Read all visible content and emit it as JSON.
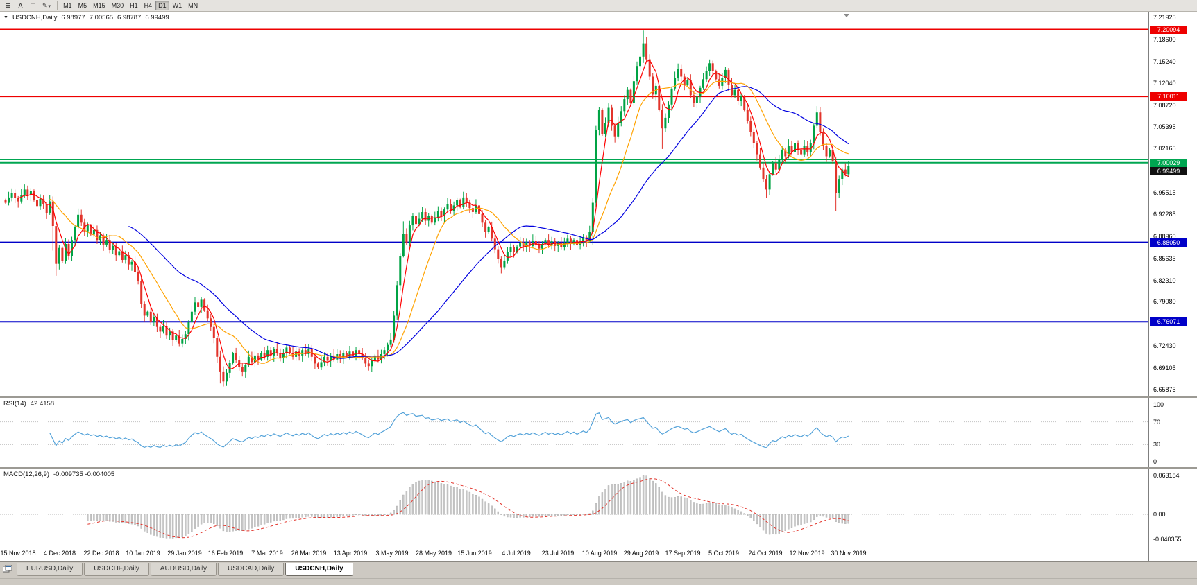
{
  "toolbar": {
    "icons": [
      {
        "name": "chart-list-icon",
        "glyph": "≣"
      },
      {
        "name": "cursor-tool-icon",
        "glyph": "A"
      },
      {
        "name": "text-tool-icon",
        "glyph": "T"
      },
      {
        "name": "draw-tool-icon",
        "glyph": "✎",
        "caret": "▾"
      }
    ],
    "timeframes": [
      "M1",
      "M5",
      "M15",
      "M30",
      "H1",
      "H4",
      "D1",
      "W1",
      "MN"
    ],
    "active_timeframe": "D1"
  },
  "chart": {
    "header": {
      "dropdown_glyph": "▼",
      "symbol": "USDCNH,Daily",
      "open": "6.98977",
      "high": "7.00565",
      "low": "6.98787",
      "close": "6.99499"
    },
    "price_scale_labels": [
      "7.21925",
      "7.18600",
      "7.15240",
      "7.12040",
      "7.08720",
      "7.05395",
      "7.02165",
      "6.98840",
      "6.95515",
      "6.92285",
      "6.88960",
      "6.85635",
      "6.82310",
      "6.79080",
      "6.75760",
      "6.72430",
      "6.69105",
      "6.65875"
    ],
    "current_price_badge": {
      "text": "6.99499",
      "color": "#111111",
      "price": 6.99499,
      "dy": 7
    }
  },
  "rsi": {
    "label": "RSI(14)",
    "value": "42.4158",
    "scale": [
      {
        "text": "100",
        "value": 100
      },
      {
        "text": "70",
        "value": 70
      },
      {
        "text": "30",
        "value": 30
      },
      {
        "text": "0",
        "value": 0
      }
    ],
    "levels": [
      70,
      30
    ]
  },
  "macd": {
    "label": "MACD(12,26,9)",
    "values": "-0.009735 -0.004005",
    "scale": [
      {
        "text": "0.063184",
        "value": 0.063184
      },
      {
        "text": "0.00",
        "value": 0
      },
      {
        "text": "-0.040355",
        "value": -0.040355
      }
    ]
  },
  "tabs": [
    {
      "label": "EURUSD,Daily",
      "active": false
    },
    {
      "label": "USDCHF,Daily",
      "active": false
    },
    {
      "label": "AUDUSD,Daily",
      "active": false
    },
    {
      "label": "USDCAD,Daily",
      "active": false
    },
    {
      "label": "USDCNH,Daily",
      "active": true
    }
  ],
  "chart_data": {
    "type": "candlestick",
    "symbol": "USDCNH",
    "timeframe": "Daily",
    "title": "USDCNH,Daily",
    "ylim": [
      6.652,
      7.226
    ],
    "x_labels": [
      "15 Nov 2018",
      "4 Dec 2018",
      "22 Dec 2018",
      "10 Jan 2019",
      "29 Jan 2019",
      "16 Feb 2019",
      "7 Mar 2019",
      "26 Mar 2019",
      "13 Apr 2019",
      "3 May 2019",
      "28 May 2019",
      "15 Jun 2019",
      "4 Jul 2019",
      "23 Jul 2019",
      "10 Aug 2019",
      "29 Aug 2019",
      "17 Sep 2019",
      "5 Oct 2019",
      "24 Oct 2019",
      "12 Nov 2019",
      "30 Nov 2019"
    ],
    "closes": [
      6.94,
      6.948,
      6.955,
      6.947,
      6.942,
      6.952,
      6.96,
      6.951,
      6.958,
      6.944,
      6.935,
      6.946,
      6.938,
      6.925,
      6.942,
      6.905,
      6.848,
      6.872,
      6.852,
      6.878,
      6.86,
      6.884,
      6.904,
      6.922,
      6.91,
      6.897,
      6.906,
      6.892,
      6.899,
      6.884,
      6.891,
      6.877,
      6.884,
      6.869,
      6.875,
      6.861,
      6.867,
      6.854,
      6.861,
      6.847,
      6.851,
      6.836,
      6.822,
      6.788,
      6.77,
      6.776,
      6.76,
      6.768,
      6.753,
      6.746,
      6.754,
      6.74,
      6.746,
      6.733,
      6.74,
      6.728,
      6.735,
      6.742,
      6.76,
      6.776,
      6.79,
      6.783,
      6.794,
      6.778,
      6.766,
      6.753,
      6.736,
      6.708,
      6.686,
      6.671,
      6.684,
      6.699,
      6.713,
      6.703,
      6.693,
      6.686,
      6.696,
      6.708,
      6.7,
      6.71,
      6.704,
      6.714,
      6.708,
      6.718,
      6.71,
      6.72,
      6.713,
      6.706,
      6.714,
      6.722,
      6.714,
      6.708,
      6.716,
      6.71,
      6.718,
      6.712,
      6.72,
      6.708,
      6.698,
      6.692,
      6.7,
      6.708,
      6.702,
      6.71,
      6.704,
      6.712,
      6.706,
      6.714,
      6.708,
      6.716,
      6.71,
      6.718,
      6.712,
      6.706,
      6.698,
      6.694,
      6.702,
      6.71,
      6.704,
      6.712,
      6.718,
      6.726,
      6.734,
      6.77,
      6.816,
      6.86,
      6.893,
      6.88,
      6.906,
      6.92,
      6.908,
      6.916,
      6.926,
      6.913,
      6.92,
      6.91,
      6.918,
      6.928,
      6.92,
      6.93,
      6.938,
      6.928,
      6.936,
      6.944,
      6.934,
      6.948,
      6.94,
      6.932,
      6.926,
      6.936,
      6.923,
      6.91,
      6.896,
      6.903,
      6.886,
      6.87,
      6.856,
      6.843,
      6.853,
      6.866,
      6.873,
      6.866,
      6.874,
      6.88,
      6.873,
      6.881,
      6.875,
      6.883,
      6.877,
      6.871,
      6.878,
      6.884,
      6.876,
      6.882,
      6.875,
      6.879,
      6.873,
      6.88,
      6.886,
      6.878,
      6.884,
      6.876,
      6.882,
      6.888,
      6.883,
      6.896,
      6.94,
      7.05,
      7.08,
      7.043,
      7.06,
      7.083,
      7.056,
      7.04,
      7.06,
      7.078,
      7.096,
      7.11,
      7.09,
      7.123,
      7.146,
      7.16,
      7.18,
      7.156,
      7.13,
      7.103,
      7.116,
      7.08,
      7.052,
      7.068,
      7.088,
      7.112,
      7.128,
      7.142,
      7.13,
      7.118,
      7.125,
      7.102,
      7.09,
      7.1,
      7.113,
      7.126,
      7.138,
      7.15,
      7.138,
      7.126,
      7.116,
      7.128,
      7.14,
      7.118,
      7.102,
      7.11,
      7.094,
      7.1,
      7.08,
      7.063,
      7.046,
      7.03,
      7.013,
      6.993,
      6.976,
      6.96,
      6.983,
      7.0,
      6.99,
      7.006,
      7.02,
      7.01,
      7.026,
      7.016,
      7.03,
      7.02,
      7.013,
      7.026,
      7.016,
      7.03,
      7.056,
      7.076,
      7.046,
      7.026,
      7.01,
      7.02,
      7.003,
      6.955,
      6.976,
      6.99,
      6.983,
      6.99499
    ],
    "wick_overrides": {
      "15": {
        "l": 6.868
      },
      "16": {
        "l": 6.83
      },
      "68": {
        "l": 6.668
      },
      "69": {
        "l": 6.6635
      },
      "126": {
        "h": 6.912
      },
      "186": {
        "l": 6.876
      },
      "202": {
        "h": 7.1992
      },
      "208": {
        "l": 7.021
      },
      "241": {
        "l": 6.947
      },
      "257": {
        "h": 7.0855
      },
      "263": {
        "l": 6.9275
      }
    },
    "hlines": [
      {
        "price": 7.20094,
        "label": "7.20094",
        "color": "#EE0000",
        "badge": true
      },
      {
        "price": 7.10011,
        "label": "7.10011",
        "color": "#EE0000",
        "badge": true
      },
      {
        "price": 7.0053,
        "label": "",
        "color": "#00A651",
        "badge": false
      },
      {
        "price": 7.00029,
        "label": "7.00029",
        "color": "#00A651",
        "badge": true
      },
      {
        "price": 6.8805,
        "label": "6.88050",
        "color": "#0000C8",
        "badge": true
      },
      {
        "price": 6.76071,
        "label": "6.76071",
        "color": "#0000C8",
        "badge": true
      }
    ],
    "indicators": {
      "ma": [
        {
          "period": 5,
          "color": "#FF0000"
        },
        {
          "period": 15,
          "color": "#FFA200"
        },
        {
          "period": 40,
          "color": "#0000E0"
        }
      ],
      "rsi_period": 14,
      "macd_params": [
        12,
        26,
        9
      ]
    },
    "colors": {
      "bull": "#00A344",
      "bear": "#E2342B",
      "rsi_line": "#53A2D9",
      "macd_hist": "#C6C6C6",
      "macd_signal": "#E2342B",
      "level_dotted": "#C3C3C3"
    }
  }
}
